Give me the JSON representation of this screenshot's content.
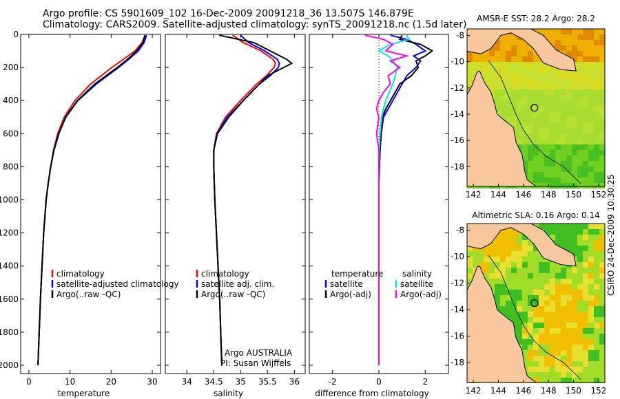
{
  "header": {
    "line1": "Argo profile: CS 5901609_102 16-Dec-2009 20091218_36 13.507S 146.879E",
    "line2": "Climatology: CARS2009. Satellite-adjusted climatology: synTS_20091218.nc (1.5d later)"
  },
  "stamp": "CSIRO 24-Dec-2009 10:30:25",
  "colors": {
    "climatology": "#ff0000",
    "satellite": "#0000ff",
    "argo": "#000000",
    "sat_salinity": "#00e5ee",
    "argo_salinity": "#ff00ff",
    "land": "#f7c79e"
  },
  "chart_data": [
    {
      "type": "line",
      "xlabel": "temperature",
      "ylim": [
        2050,
        0
      ],
      "xlim": [
        -2,
        32
      ],
      "yticks": [
        "0",
        "200",
        "400",
        "600",
        "800",
        "1000",
        "1200",
        "1400",
        "1600",
        "1800",
        "2000"
      ],
      "xticks": [
        "0",
        "10",
        "20",
        "30"
      ],
      "legend": [
        "climatology",
        "satellite-adjusted climatology",
        "Argo(..raw -QC)"
      ],
      "depth": [
        5,
        50,
        100,
        150,
        200,
        300,
        400,
        500,
        600,
        700,
        800,
        900,
        1000,
        1200,
        1400,
        1600,
        1800,
        2000
      ],
      "series": [
        {
          "name": "climatology",
          "values": [
            28.3,
            27.5,
            25.8,
            23.0,
            20.2,
            15.0,
            11.2,
            8.6,
            7.0,
            6.0,
            5.3,
            4.7,
            4.2,
            3.6,
            3.2,
            2.8,
            2.5,
            2.2
          ]
        },
        {
          "name": "satellite-adjusted climatology",
          "values": [
            28.6,
            28.0,
            26.6,
            24.3,
            21.8,
            16.4,
            11.9,
            9.0,
            7.2,
            6.0,
            5.3,
            4.7,
            4.2,
            3.6,
            3.2,
            2.8,
            2.5,
            2.2
          ]
        },
        {
          "name": "Argo(..raw -QC)",
          "values": [
            28.2,
            27.7,
            26.2,
            24.0,
            21.5,
            16.0,
            11.8,
            8.9,
            7.3,
            6.1,
            5.3,
            4.7,
            4.2,
            3.6,
            3.2,
            2.8,
            2.5,
            2.2
          ]
        }
      ]
    },
    {
      "type": "line",
      "xlabel": "salinity",
      "xlim": [
        33.6,
        36.2
      ],
      "ylim": [
        2050,
        0
      ],
      "xticks": [
        "34",
        "34.5",
        "35",
        "35.5",
        "36"
      ],
      "legend": [
        "climatology",
        "satellite adj. clim.",
        "Argo(..raw -QC)"
      ],
      "credit": [
        "Argo AUSTRALIA",
        "PI: Susan Wijffels"
      ],
      "depth": [
        5,
        50,
        100,
        150,
        175,
        200,
        250,
        300,
        400,
        500,
        600,
        700,
        800,
        1000,
        1200,
        1400,
        1600,
        1800,
        2000
      ],
      "series": [
        {
          "name": "climatology",
          "values": [
            34.85,
            35.05,
            35.38,
            35.6,
            35.65,
            35.62,
            35.48,
            35.3,
            35.0,
            34.72,
            34.55,
            34.5,
            34.5,
            34.52,
            34.55,
            34.58,
            34.61,
            34.63,
            34.65
          ]
        },
        {
          "name": "satellite adj. clim.",
          "values": [
            35.0,
            35.15,
            35.45,
            35.68,
            35.72,
            35.7,
            35.55,
            35.35,
            35.05,
            34.75,
            34.56,
            34.5,
            34.5,
            34.52,
            34.55,
            34.58,
            34.61,
            34.63,
            34.65
          ]
        },
        {
          "name": "Argo(..raw -QC)",
          "values": [
            34.6,
            35.25,
            35.55,
            35.85,
            35.95,
            35.8,
            35.5,
            35.35,
            35.05,
            34.78,
            34.57,
            34.5,
            34.5,
            34.52,
            34.55,
            34.58,
            34.61,
            34.63,
            34.65
          ]
        }
      ]
    },
    {
      "type": "line",
      "xlabel": "difference from climatology",
      "xlim": [
        -3,
        3
      ],
      "ylim": [
        2050,
        0
      ],
      "xticks": [
        "-2",
        "0",
        "2"
      ],
      "legend_temperature": [
        "temperature",
        "satellite",
        "Argo(-adj)"
      ],
      "legend_salinity": [
        "salinity",
        "satellite",
        "Argo(-adj)"
      ],
      "depth": [
        5,
        30,
        60,
        100,
        130,
        160,
        200,
        250,
        300,
        350,
        400,
        450,
        500,
        600,
        700,
        800,
        900,
        1000,
        1200,
        1400,
        1600,
        1800,
        2000
      ],
      "series": [
        {
          "name": "temperature satellite",
          "values": [
            0.5,
            1.2,
            1.6,
            2.0,
            1.5,
            1.8,
            1.6,
            1.2,
            1.0,
            0.8,
            0.6,
            0.4,
            0.2,
            0.1,
            0.05,
            0.02,
            0.0,
            0.0,
            0.0,
            0.0,
            0.0,
            0.0,
            0.0
          ]
        },
        {
          "name": "temperature Argo(-adj)",
          "values": [
            1.0,
            0.9,
            1.8,
            2.3,
            2.0,
            1.6,
            1.7,
            1.4,
            0.9,
            0.7,
            0.5,
            0.3,
            0.15,
            0.1,
            0.05,
            0.02,
            0.0,
            0.0,
            0.0,
            0.0,
            0.0,
            0.0,
            0.0
          ]
        },
        {
          "name": "salinity satellite",
          "values": [
            1.2,
            1.3,
            0.5,
            0.0,
            0.4,
            0.6,
            0.8,
            0.7,
            0.6,
            0.45,
            0.3,
            0.2,
            0.12,
            0.05,
            0.02,
            0.0,
            0.0,
            0.0,
            0.0,
            0.0,
            0.0,
            0.0,
            0.0
          ]
        },
        {
          "name": "salinity Argo(-adj)",
          "values": [
            -0.6,
            0.2,
            0.6,
            0.3,
            1.2,
            0.5,
            0.9,
            0.4,
            0.5,
            0.2,
            0.0,
            -0.1,
            0.0,
            -0.1,
            0.0,
            0.0,
            0.0,
            0.0,
            0.0,
            0.0,
            0.0,
            0.0,
            0.0
          ]
        }
      ]
    },
    {
      "type": "heatmap",
      "title": "AMSR-E SST: 28.2  Argo: 28.2",
      "xlim": [
        141.5,
        152.5
      ],
      "ylim": [
        -19.5,
        -7.5
      ],
      "xticks": [
        "142",
        "144",
        "146",
        "148",
        "150",
        "152"
      ],
      "yticks": [
        "-8",
        "-10",
        "-12",
        "-14",
        "-16",
        "-18"
      ],
      "marker": {
        "lon": 146.879,
        "lat": -13.507
      }
    },
    {
      "type": "heatmap",
      "title": "Altimetric SLA: 0.16  Argo: 0.14",
      "xlim": [
        141.5,
        152.5
      ],
      "ylim": [
        -19.5,
        -7.5
      ],
      "xticks": [
        "142",
        "144",
        "146",
        "148",
        "150",
        "152"
      ],
      "yticks": [
        "-8",
        "-10",
        "-12",
        "-14",
        "-16",
        "-18"
      ],
      "marker": {
        "lon": 146.879,
        "lat": -13.507
      }
    }
  ]
}
